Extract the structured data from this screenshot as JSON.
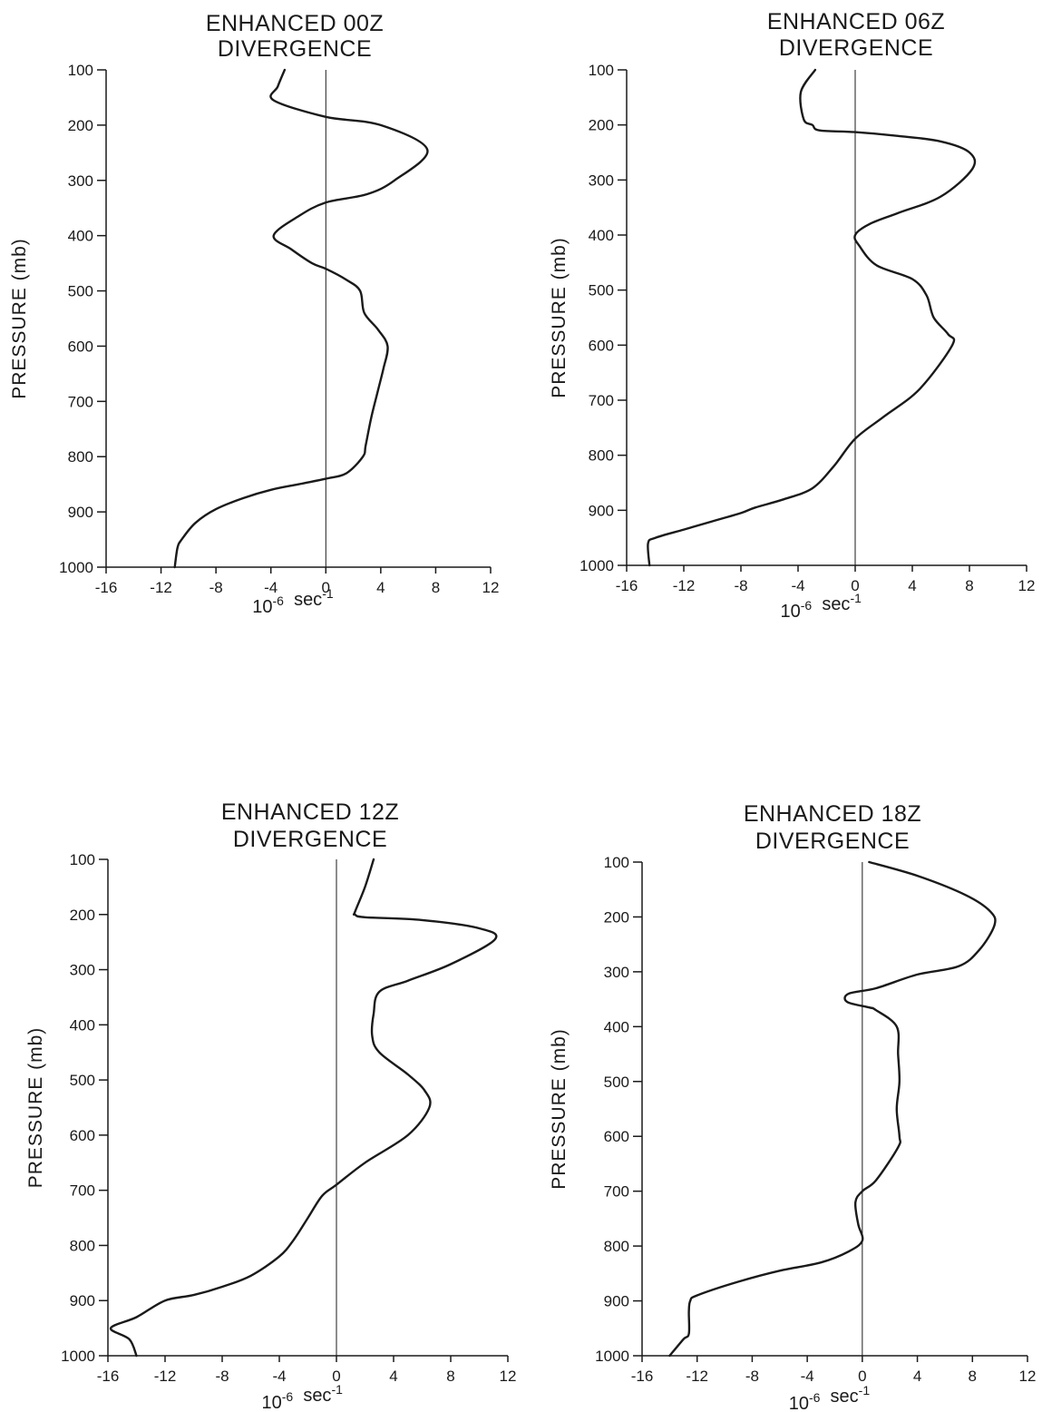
{
  "chart_data": [
    {
      "type": "line",
      "title_line1": "ENHANCED 00Z",
      "title_line2": "DIVERGENCE",
      "ylabel": "PRESSURE (mb)",
      "xlabel_base": "10",
      "xlabel_exp": "-6",
      "xlabel_unit": "sec",
      "xlabel_unit_exp": "-1",
      "xlim": [
        -16,
        12
      ],
      "ylim": [
        100,
        1000
      ],
      "y_inverted": true,
      "x_ticks": [
        "-16",
        "-12",
        "-8",
        "-4",
        "0",
        "4",
        "8",
        "12"
      ],
      "y_ticks": [
        "100",
        "200",
        "300",
        "400",
        "500",
        "600",
        "700",
        "800",
        "900",
        "1000"
      ],
      "series": [
        {
          "x": [
            -3,
            -3.5,
            -3.8,
            0,
            4,
            7.4,
            5,
            3,
            0,
            -2,
            -3.8,
            -2.5,
            -1,
            0,
            1.5,
            2.5,
            2.8,
            3.8,
            4.5,
            4.2,
            3.8,
            3.3,
            2.9,
            2.7,
            1.5,
            0,
            -2,
            -4,
            -6,
            -8,
            -9.5,
            -10.5,
            -10.8,
            -11
          ],
          "y": [
            100,
            130,
            155,
            185,
            200,
            245,
            300,
            325,
            340,
            365,
            400,
            425,
            450,
            460,
            480,
            500,
            540,
            570,
            600,
            640,
            680,
            730,
            780,
            800,
            830,
            840,
            850,
            860,
            875,
            895,
            920,
            950,
            965,
            1000
          ]
        }
      ]
    },
    {
      "type": "line",
      "title_line1": "ENHANCED 06Z",
      "title_line2": "DIVERGENCE",
      "ylabel": "PRESSURE (mb)",
      "xlabel_base": "10",
      "xlabel_exp": "-6",
      "xlabel_unit": "sec",
      "xlabel_unit_exp": "-1",
      "xlim": [
        -16,
        12
      ],
      "ylim": [
        100,
        1000
      ],
      "y_inverted": true,
      "x_ticks": [
        "-16",
        "-12",
        "-8",
        "-4",
        "0",
        "4",
        "8",
        "12"
      ],
      "y_ticks": [
        "100",
        "200",
        "300",
        "400",
        "500",
        "600",
        "700",
        "800",
        "900",
        "1000"
      ],
      "series": [
        {
          "x": [
            -2.8,
            -3.8,
            -3.6,
            -3,
            -2.5,
            0,
            3,
            6,
            8,
            8.2,
            6,
            3,
            1,
            0,
            0.3,
            1.5,
            4,
            5,
            5.5,
            6.5,
            6.8,
            4.5,
            2,
            0,
            -1.5,
            -3,
            -5,
            -7,
            -8,
            -10,
            -12,
            -14,
            -14.5,
            -14.4
          ],
          "y": [
            100,
            140,
            190,
            200,
            210,
            213,
            220,
            230,
            250,
            280,
            330,
            360,
            380,
            400,
            420,
            455,
            480,
            510,
            550,
            580,
            600,
            680,
            730,
            770,
            820,
            860,
            880,
            895,
            905,
            920,
            935,
            950,
            960,
            1000
          ]
        }
      ]
    },
    {
      "type": "line",
      "title_line1": "ENHANCED 12Z",
      "title_line2": "DIVERGENCE",
      "ylabel": "PRESSURE (mb)",
      "xlabel_base": "10",
      "xlabel_exp": "-6",
      "xlabel_unit": "sec",
      "xlabel_unit_exp": "-1",
      "xlim": [
        -16,
        12
      ],
      "ylim": [
        100,
        1000
      ],
      "y_inverted": true,
      "x_ticks": [
        "-16",
        "-12",
        "-8",
        "-4",
        "0",
        "4",
        "8",
        "12"
      ],
      "y_ticks": [
        "100",
        "200",
        "300",
        "400",
        "500",
        "600",
        "700",
        "800",
        "900",
        "1000"
      ],
      "series": [
        {
          "x": [
            2.6,
            2,
            1.3,
            1.3,
            2,
            6,
            10,
            11.1,
            8,
            5,
            3,
            2.6,
            2.5,
            3,
            5,
            6.2,
            6.5,
            5,
            2,
            0,
            -1,
            -2,
            -3,
            -4,
            -6,
            -8,
            -10,
            -12,
            -14,
            -15.8,
            -14.5,
            -14
          ],
          "y": [
            100,
            150,
            195,
            200,
            205,
            210,
            225,
            245,
            290,
            320,
            340,
            380,
            420,
            450,
            490,
            520,
            550,
            600,
            650,
            690,
            710,
            750,
            790,
            820,
            855,
            875,
            890,
            900,
            930,
            950,
            970,
            1000
          ]
        }
      ]
    },
    {
      "type": "line",
      "title_line1": "ENHANCED 18Z",
      "title_line2": "DIVERGENCE",
      "ylabel": "PRESSURE (mb)",
      "xlabel_base": "10",
      "xlabel_exp": "-6",
      "xlabel_unit": "sec",
      "xlabel_unit_exp": "-1",
      "xlim": [
        -16,
        12
      ],
      "ylim": [
        100,
        1000
      ],
      "y_inverted": true,
      "x_ticks": [
        "-16",
        "-12",
        "-8",
        "-4",
        "0",
        "4",
        "8",
        "12"
      ],
      "y_ticks": [
        "100",
        "200",
        "300",
        "400",
        "500",
        "600",
        "700",
        "800",
        "900",
        "1000"
      ],
      "series": [
        {
          "x": [
            0.5,
            4,
            7.5,
            9.3,
            9.6,
            8.5,
            7,
            4,
            1,
            -1,
            -1.1,
            0.5,
            1,
            2.5,
            2.6,
            2.7,
            2.5,
            2.7,
            2.6,
            1,
            0,
            -0.5,
            -0.3,
            0,
            -1,
            -3,
            -6,
            -9,
            -12,
            -12.5,
            -12.6,
            -12.6,
            -13,
            -14
          ],
          "y": [
            100,
            125,
            160,
            190,
            215,
            260,
            290,
            305,
            330,
            340,
            355,
            365,
            370,
            400,
            450,
            500,
            550,
            600,
            620,
            680,
            700,
            720,
            760,
            790,
            810,
            830,
            845,
            865,
            890,
            900,
            920,
            960,
            970,
            1000
          ]
        }
      ]
    }
  ]
}
